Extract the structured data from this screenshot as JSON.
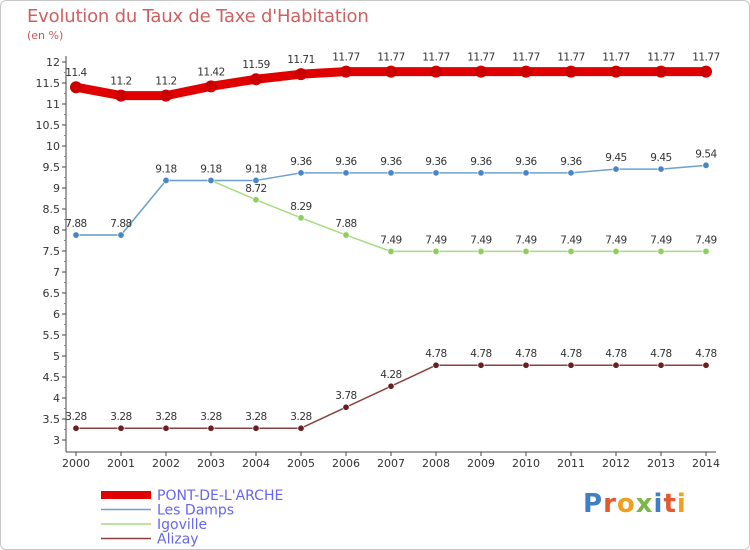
{
  "header": {
    "title": "Evolution du Taux de Taxe d'Habitation",
    "subtitle": "(en %)"
  },
  "logo": {
    "text": "Proxiti",
    "letter_colors": [
      "#3f7fc4",
      "#e25a2e",
      "#f0a020",
      "#7ab648",
      "#3f7fc4",
      "#e25a2e",
      "#f0a020"
    ]
  },
  "chart_data": {
    "type": "line",
    "x": [
      "2000",
      "2001",
      "2002",
      "2003",
      "2004",
      "2005",
      "2006",
      "2007",
      "2008",
      "2009",
      "2010",
      "2011",
      "2012",
      "2013",
      "2014"
    ],
    "ylim": [
      3,
      12
    ],
    "y_ticks": [
      "3",
      "3.5",
      "4",
      "4.5",
      "5",
      "5.5",
      "6",
      "6.5",
      "7",
      "7.5",
      "8",
      "8.5",
      "9",
      "9.5",
      "10",
      "10.5",
      "11",
      "11.5",
      "12"
    ],
    "grid": false,
    "legend_position": "bottom-left",
    "series": [
      {
        "name": "PONT-DE-L'ARCHE",
        "color": "#e00000",
        "marker_color": "#cc0000",
        "legend_text_color": "#6666ee",
        "values": [
          11.4,
          11.2,
          11.2,
          11.42,
          11.59,
          11.71,
          11.77,
          11.77,
          11.77,
          11.77,
          11.77,
          11.77,
          11.77,
          11.77,
          11.77
        ],
        "labels": [
          "11.4",
          "11.2",
          "11.2",
          "11.42",
          "11.59",
          "11.71",
          "11.77",
          "11.77",
          "11.77",
          "11.77",
          "11.77",
          "11.77",
          "11.77",
          "11.77",
          "11.77"
        ]
      },
      {
        "name": "Les Damps",
        "color": "#6fa0d0",
        "marker_color": "#4a86c5",
        "legend_text_color": "#6666ee",
        "values": [
          7.88,
          7.88,
          9.18,
          9.18,
          9.18,
          9.36,
          9.36,
          9.36,
          9.36,
          9.36,
          9.36,
          9.36,
          9.45,
          9.45,
          9.54
        ],
        "labels": [
          "7.88",
          "7.88",
          "9.18",
          "9.18",
          "9.18",
          "9.36",
          "9.36",
          "9.36",
          "9.36",
          "9.36",
          "9.36",
          "9.36",
          "9.45",
          "9.45",
          "9.54"
        ]
      },
      {
        "name": "Igoville",
        "color": "#a6dc80",
        "marker_color": "#8ccf5a",
        "legend_text_color": "#6666ee",
        "values": [
          7.88,
          7.88,
          9.18,
          9.18,
          8.72,
          8.29,
          7.88,
          7.49,
          7.49,
          7.49,
          7.49,
          7.49,
          7.49,
          7.49,
          7.49
        ],
        "labels": [
          "",
          "",
          "",
          "",
          "8.72",
          "8.29",
          "7.88",
          "7.49",
          "7.49",
          "7.49",
          "7.49",
          "7.49",
          "7.49",
          "7.49",
          "7.49"
        ]
      },
      {
        "name": "Alizay",
        "color": "#8b4040",
        "marker_color": "#6a2020",
        "legend_text_color": "#6666ee",
        "values": [
          3.28,
          3.28,
          3.28,
          3.28,
          3.28,
          3.28,
          3.78,
          4.28,
          4.78,
          4.78,
          4.78,
          4.78,
          4.78,
          4.78,
          4.78
        ],
        "labels": [
          "3.28",
          "3.28",
          "3.28",
          "3.28",
          "3.28",
          "3.28",
          "3.78",
          "4.28",
          "4.78",
          "4.78",
          "4.78",
          "4.78",
          "4.78",
          "4.78",
          "4.78"
        ]
      }
    ]
  }
}
